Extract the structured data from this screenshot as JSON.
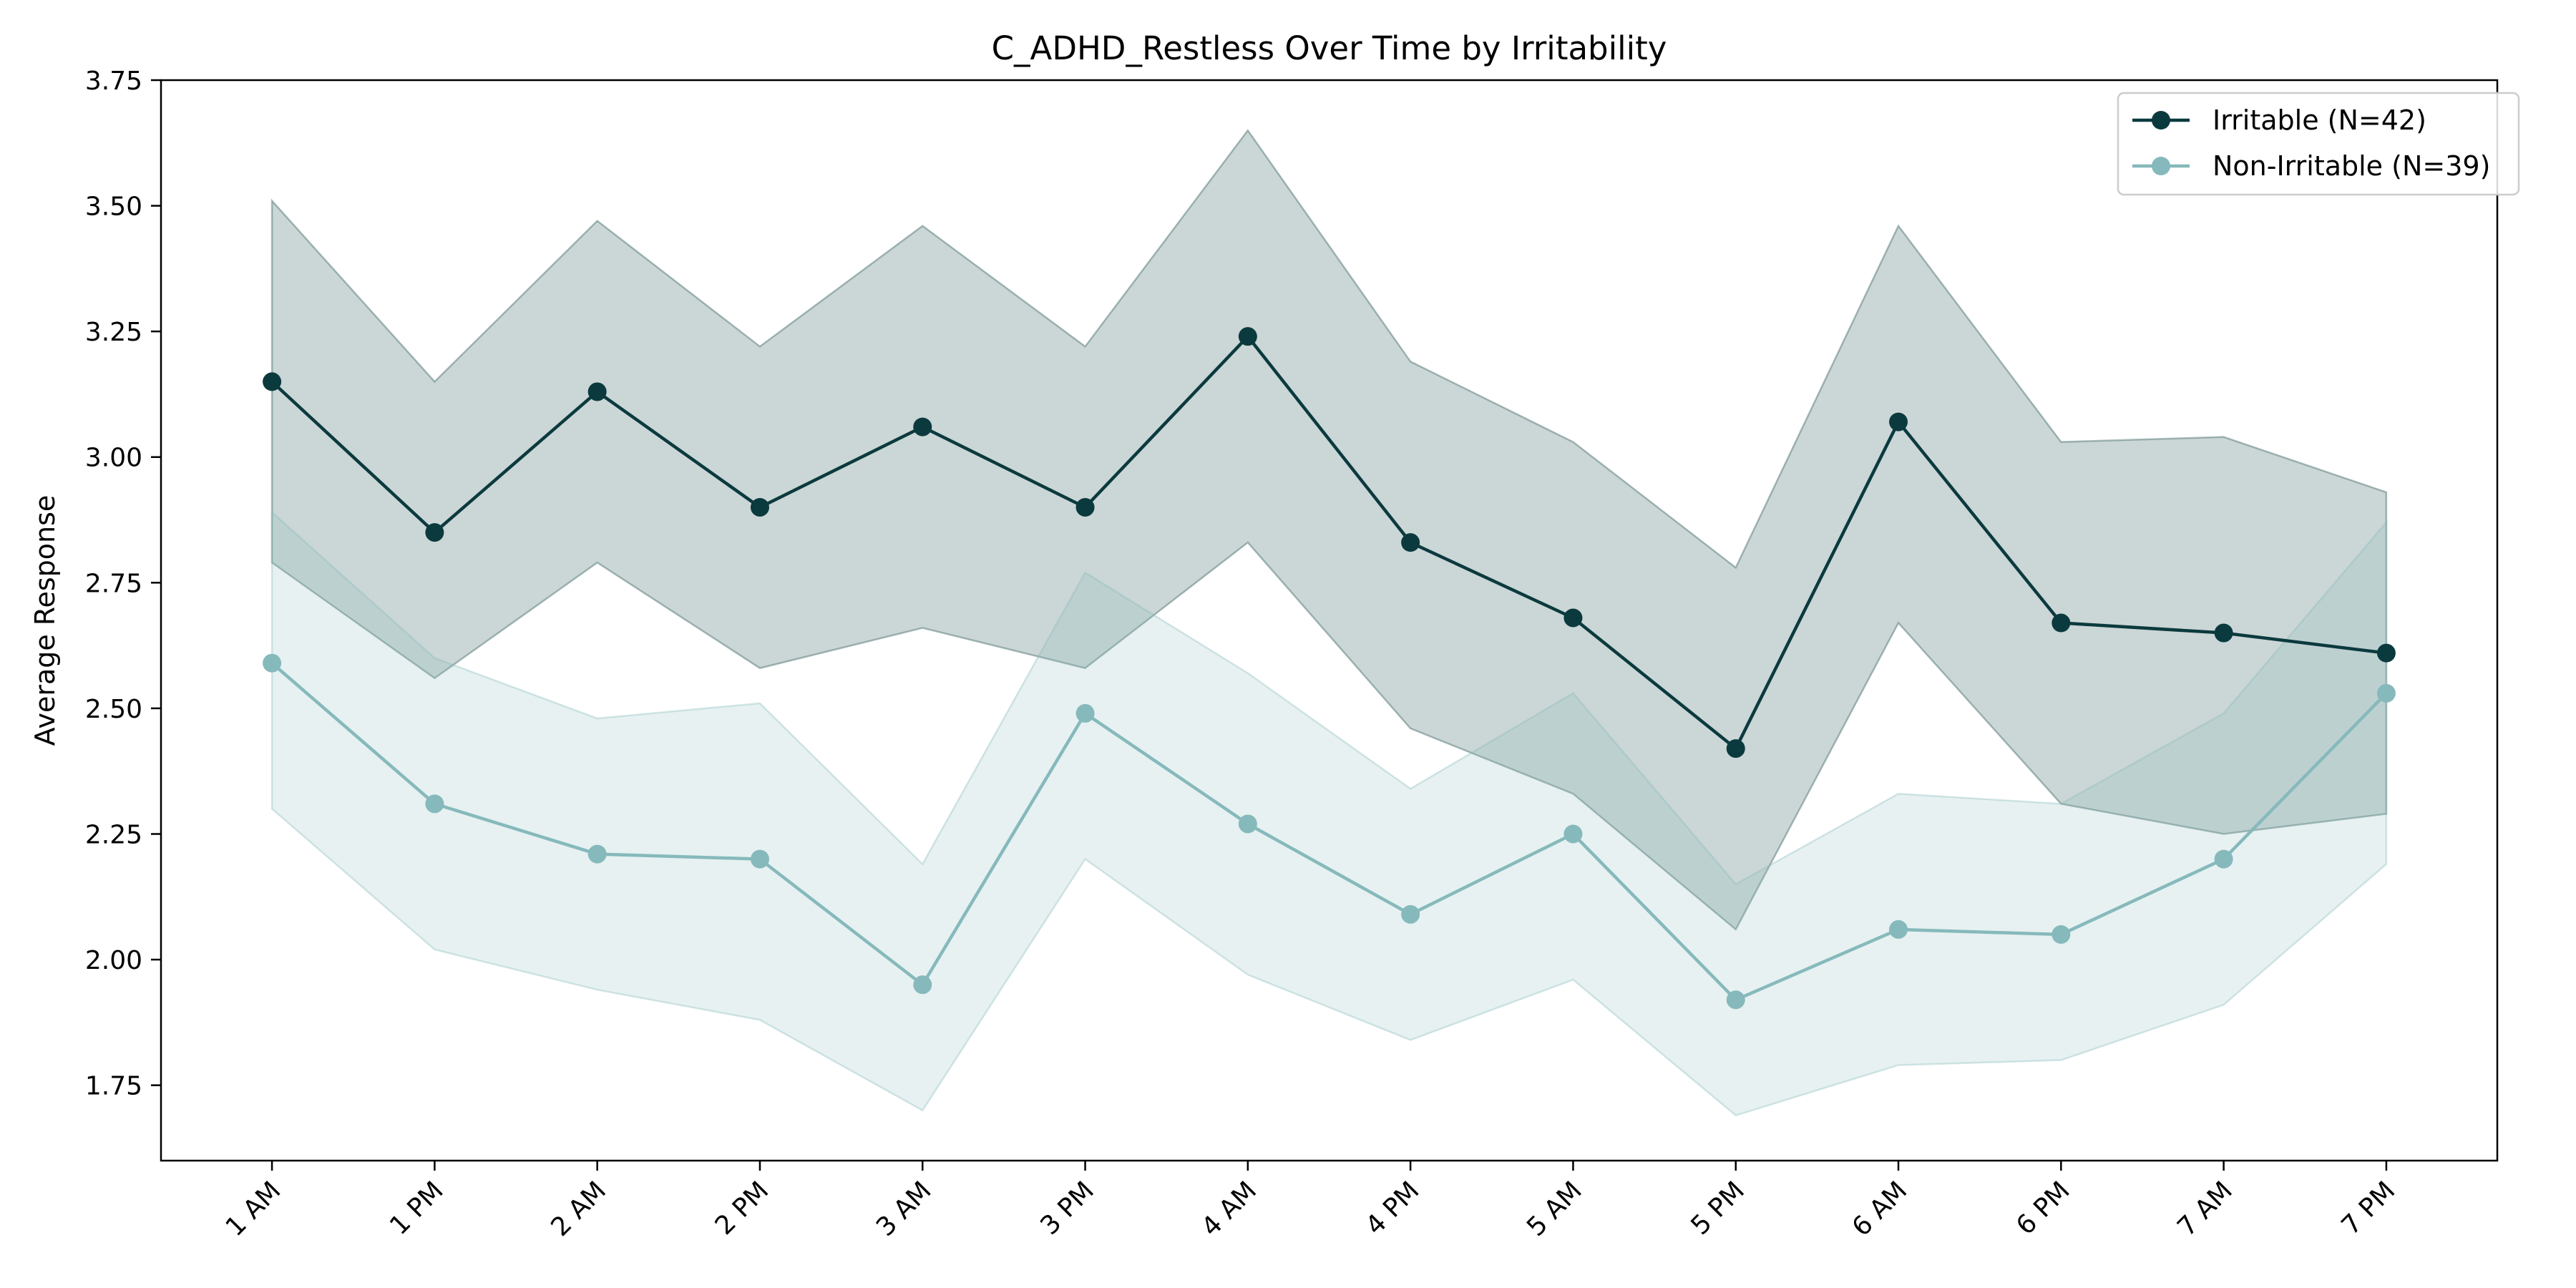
{
  "chart_data": {
    "type": "line",
    "title": "C_ADHD_Restless Over Time by Irritability",
    "xlabel": "",
    "ylabel": "Average Response",
    "categories": [
      "1 AM",
      "1 PM",
      "2 AM",
      "2 PM",
      "3 AM",
      "3 PM",
      "4 AM",
      "4 PM",
      "5 AM",
      "5 PM",
      "6 AM",
      "6 PM",
      "7 AM",
      "7 PM"
    ],
    "ylim": [
      1.6,
      3.75
    ],
    "yticks": [
      1.75,
      2.0,
      2.25,
      2.5,
      2.75,
      3.0,
      3.25,
      3.5,
      3.75
    ],
    "ytick_labels": [
      "1.75",
      "2.00",
      "2.25",
      "2.50",
      "2.75",
      "3.00",
      "3.25",
      "3.50",
      "3.75"
    ],
    "grid": false,
    "legend_position": "top-right",
    "series": [
      {
        "name": "Irritable (N=42)",
        "color": "#0b3a3e",
        "band_color": "#2f5d5a",
        "band_opacity": 0.25,
        "values": [
          3.15,
          2.85,
          3.13,
          2.9,
          3.06,
          2.9,
          3.24,
          2.83,
          2.68,
          2.42,
          3.07,
          2.67,
          2.65,
          2.61
        ],
        "upper": [
          3.51,
          3.15,
          3.47,
          3.22,
          3.46,
          3.22,
          3.65,
          3.19,
          3.03,
          2.78,
          3.46,
          3.03,
          3.04,
          2.93
        ],
        "lower": [
          2.79,
          2.56,
          2.79,
          2.58,
          2.66,
          2.58,
          2.83,
          2.46,
          2.33,
          2.06,
          2.67,
          2.31,
          2.25,
          2.29
        ]
      },
      {
        "name": "Non-Irritable (N=39)",
        "color": "#86b9bb",
        "band_color": "#86b9bb",
        "band_opacity": 0.2,
        "values": [
          2.59,
          2.31,
          2.21,
          2.2,
          1.95,
          2.49,
          2.27,
          2.09,
          2.25,
          1.92,
          2.06,
          2.05,
          2.2,
          2.53
        ],
        "upper": [
          2.89,
          2.6,
          2.48,
          2.51,
          2.19,
          2.77,
          2.57,
          2.34,
          2.53,
          2.15,
          2.33,
          2.31,
          2.49,
          2.87
        ],
        "lower": [
          2.3,
          2.02,
          1.94,
          1.88,
          1.7,
          2.2,
          1.97,
          1.84,
          1.96,
          1.69,
          1.79,
          1.8,
          1.91,
          2.19
        ]
      }
    ]
  }
}
